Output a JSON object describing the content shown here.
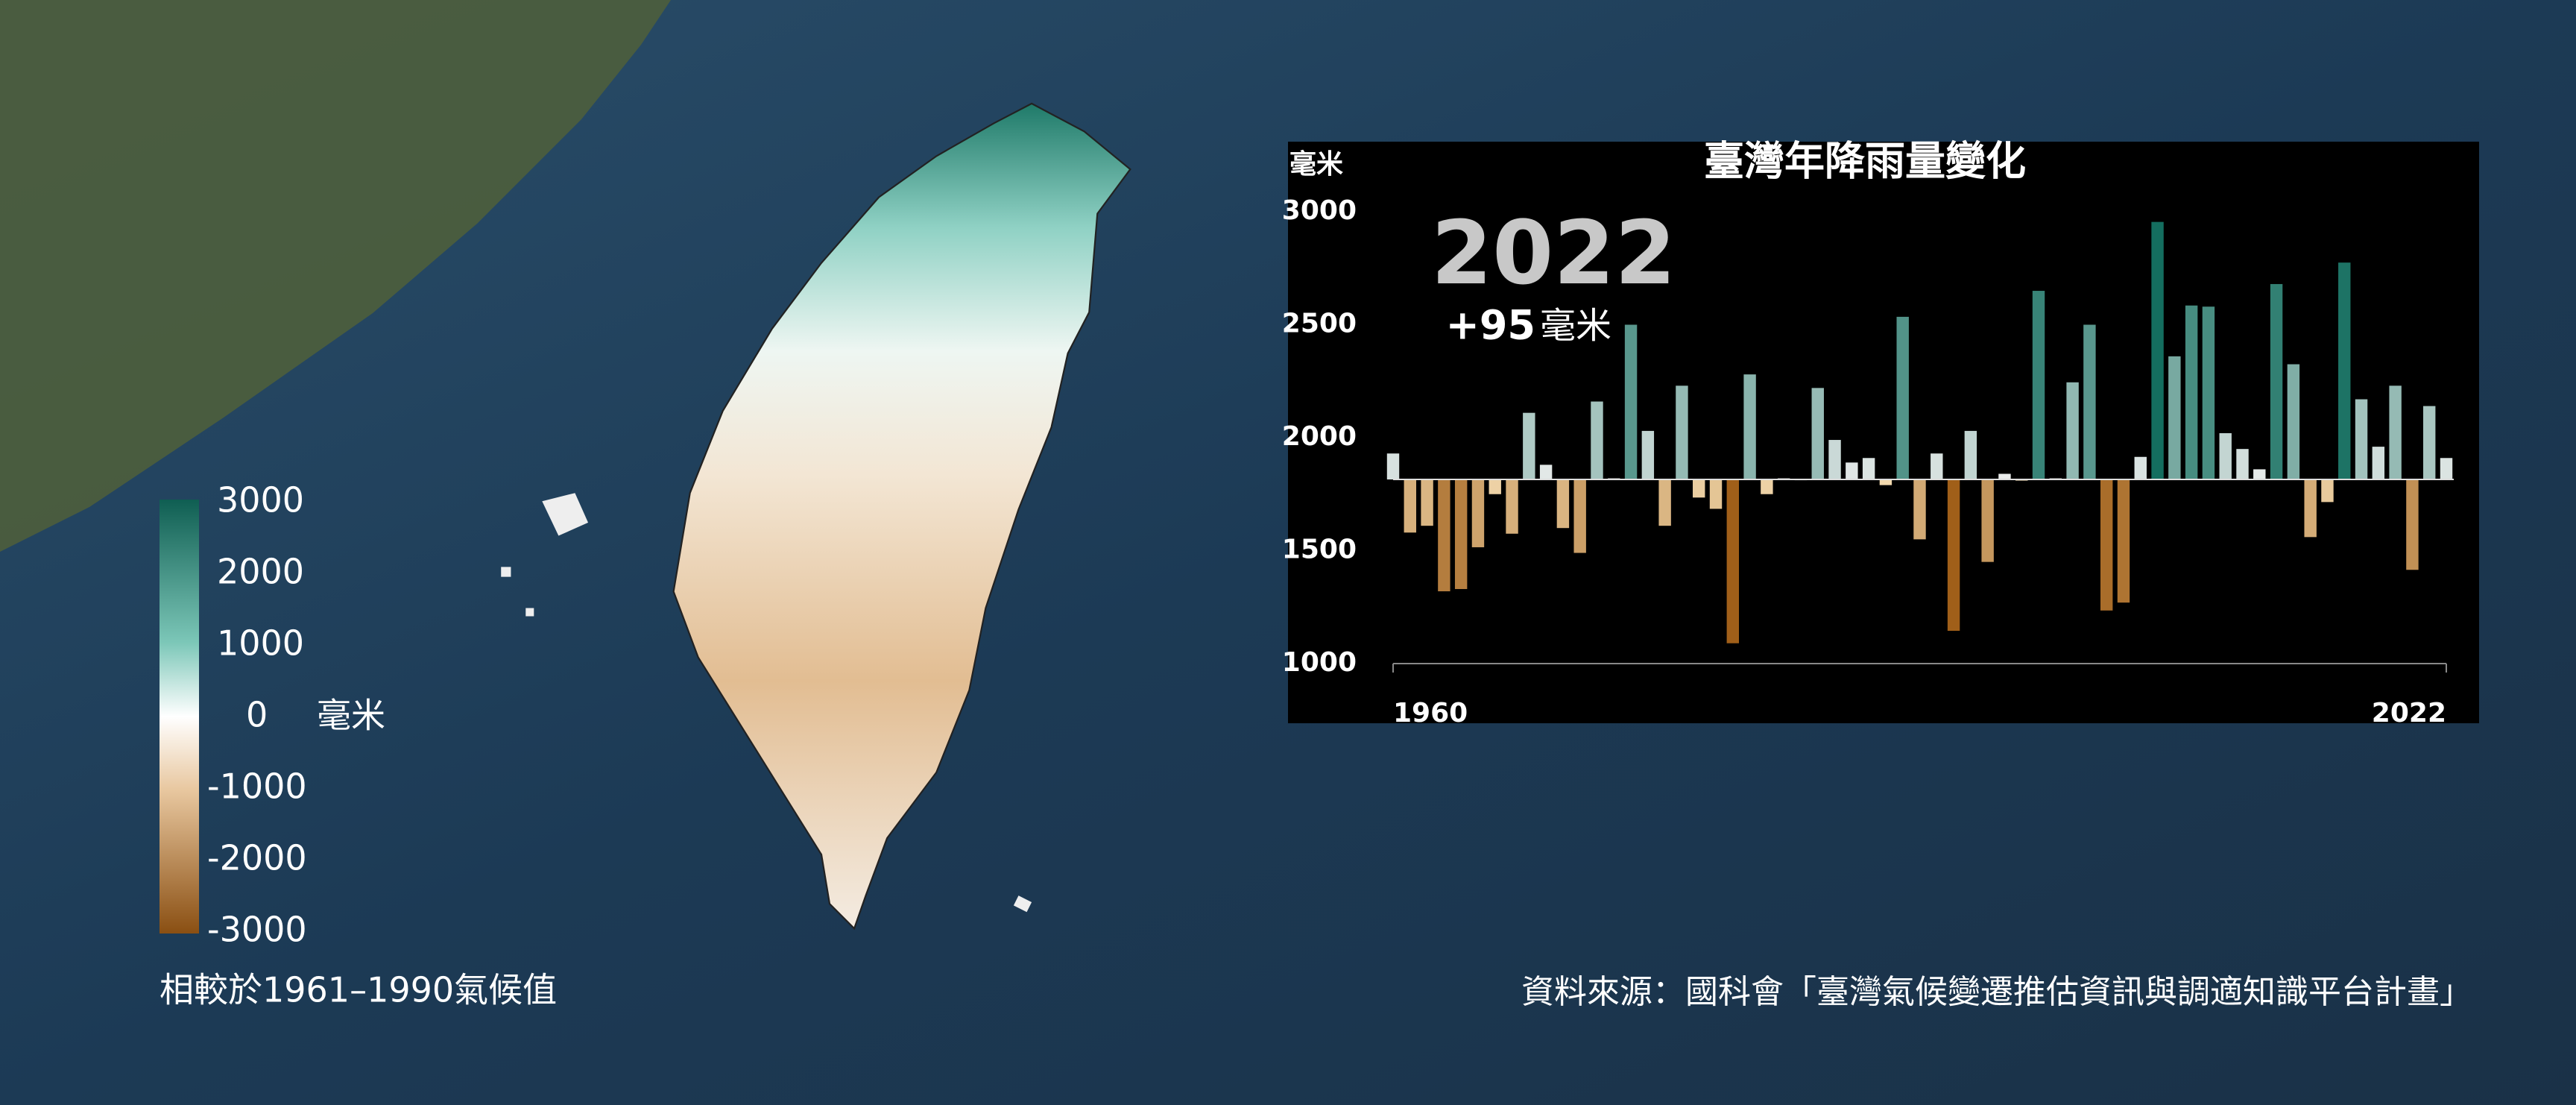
{
  "chart_data": {
    "type": "bar",
    "title": "臺灣年降雨量變化",
    "y_unit": "毫米",
    "annotation": {
      "year": "2022",
      "change": "+95",
      "unit": "毫米"
    },
    "x": [
      1960,
      1961,
      1962,
      1963,
      1964,
      1965,
      1966,
      1967,
      1968,
      1969,
      1970,
      1971,
      1972,
      1973,
      1974,
      1975,
      1976,
      1977,
      1978,
      1979,
      1980,
      1981,
      1982,
      1983,
      1984,
      1985,
      1986,
      1987,
      1988,
      1989,
      1990,
      1991,
      1992,
      1993,
      1994,
      1995,
      1996,
      1997,
      1998,
      1999,
      2000,
      2001,
      2002,
      2003,
      2004,
      2005,
      2006,
      2007,
      2008,
      2009,
      2010,
      2011,
      2012,
      2013,
      2014,
      2015,
      2016,
      2017,
      2018,
      2019,
      2020,
      2021,
      2022
    ],
    "values": [
      1930,
      1580,
      1610,
      1320,
      1330,
      1515,
      1750,
      1575,
      2110,
      1880,
      1600,
      1490,
      2160,
      1820,
      2500,
      2030,
      1610,
      2230,
      1735,
      1685,
      1090,
      2280,
      1750,
      1820,
      1815,
      2220,
      1990,
      1890,
      1910,
      1790,
      2535,
      1550,
      1930,
      1145,
      2030,
      1450,
      1840,
      1810,
      2650,
      1820,
      2245,
      2500,
      1235,
      1270,
      1915,
      2955,
      2360,
      2585,
      2580,
      2020,
      1950,
      1860,
      2680,
      2325,
      1560,
      1715,
      2775,
      2170,
      1960,
      2230,
      1415,
      2140,
      1910
    ],
    "baseline": 1815,
    "xlim": [
      1960,
      2022
    ],
    "xticks": [
      1960,
      2022
    ],
    "ylim": [
      1000,
      3000
    ],
    "yticks": [
      1000,
      1500,
      2000,
      2500,
      3000
    ]
  },
  "legend": {
    "ticks": [
      3000,
      2000,
      1000,
      0,
      -1000,
      -2000,
      -3000
    ],
    "unit": "毫米",
    "caption": "相較於1961–1990氣候值"
  },
  "source": "資料來源：國科會「臺灣氣候變遷推估資訊與調適知識平台計畫」"
}
